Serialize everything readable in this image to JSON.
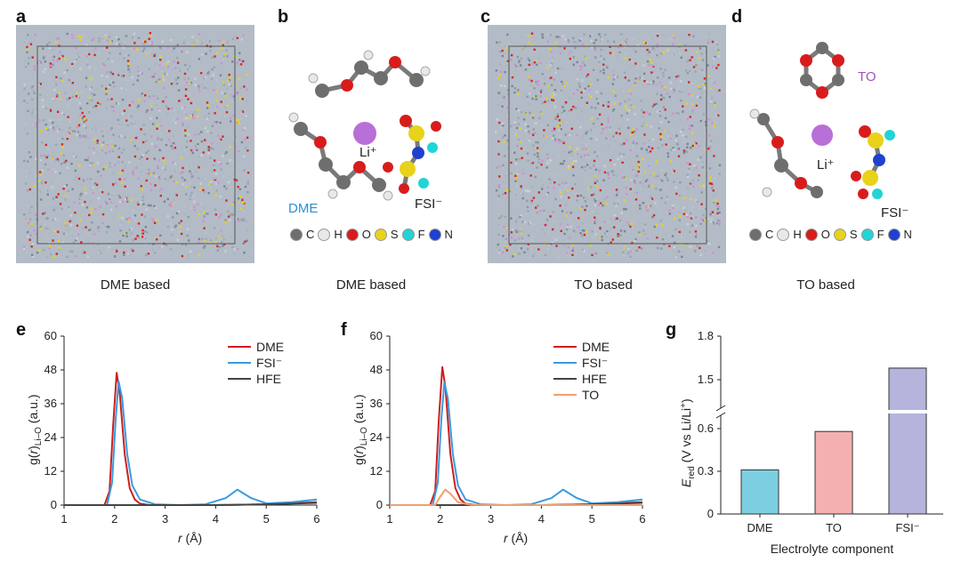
{
  "panels": {
    "a": {
      "letter": "a",
      "caption": "DME based"
    },
    "b": {
      "letter": "b",
      "caption": "DME based",
      "labels": {
        "dme": "DME",
        "li": "Li⁺",
        "fsi": "FSI⁻"
      }
    },
    "c": {
      "letter": "c",
      "caption": "TO based"
    },
    "d": {
      "letter": "d",
      "caption": "TO based",
      "labels": {
        "to": "TO",
        "li": "Li⁺",
        "fsi": "FSI⁻"
      }
    },
    "e": {
      "letter": "e"
    },
    "f": {
      "letter": "f"
    },
    "g": {
      "letter": "g"
    }
  },
  "atom_legend": [
    {
      "symbol": "C",
      "color": "#6e6e6e"
    },
    {
      "symbol": "H",
      "color": "#e8e8e8"
    },
    {
      "symbol": "O",
      "color": "#d81c1c"
    },
    {
      "symbol": "S",
      "color": "#e8d21a"
    },
    {
      "symbol": "F",
      "color": "#22d4d4"
    },
    {
      "symbol": "N",
      "color": "#2040d0"
    }
  ],
  "colors": {
    "dme": "#cc1f1f",
    "fsi": "#3a9be0",
    "hfe": "#444444",
    "to": "#f0a070",
    "bar_dme": "#7ccfe0",
    "bar_to": "#f4b0b0",
    "bar_fsi": "#b4b4dc",
    "dme_label": "#2b8fd6",
    "to_label": "#a050c0"
  },
  "chart_data": [
    {
      "type": "line",
      "panel": "e",
      "xlabel": "r (Å)",
      "ylabel": "g(r)Li–O (a.u.)",
      "xlim": [
        1,
        6
      ],
      "ylim": [
        0,
        60
      ],
      "xticks": [
        1,
        2,
        3,
        4,
        5,
        6
      ],
      "yticks": [
        0,
        12,
        24,
        36,
        48,
        60
      ],
      "legend": "top-right",
      "series": [
        {
          "name": "DME",
          "color": "#cc1f1f",
          "x": [
            1,
            1.8,
            1.9,
            1.97,
            2.04,
            2.1,
            2.2,
            2.3,
            2.4,
            2.5,
            2.7,
            3,
            4,
            5,
            6
          ],
          "y": [
            0,
            0,
            5,
            28,
            47,
            40,
            18,
            6,
            2,
            0.5,
            0,
            0,
            0,
            0.3,
            1
          ]
        },
        {
          "name": "FSI⁻",
          "color": "#3a9be0",
          "x": [
            1,
            1.85,
            1.95,
            2.02,
            2.08,
            2.15,
            2.25,
            2.35,
            2.5,
            2.8,
            3.3,
            3.8,
            4.2,
            4.43,
            4.7,
            5,
            5.5,
            6
          ],
          "y": [
            0,
            0,
            8,
            30,
            44,
            38,
            18,
            7,
            2,
            0.3,
            0,
            0.3,
            2.5,
            5.5,
            2.5,
            0.6,
            1,
            2
          ]
        },
        {
          "name": "HFE",
          "color": "#444444",
          "x": [
            1,
            2,
            3,
            4,
            5,
            6
          ],
          "y": [
            0,
            0,
            0,
            0,
            0.3,
            0.8
          ]
        }
      ]
    },
    {
      "type": "line",
      "panel": "f",
      "xlabel": "r (Å)",
      "ylabel": "g(r)Li–O (a.u.)",
      "xlim": [
        1,
        6
      ],
      "ylim": [
        0,
        60
      ],
      "xticks": [
        1,
        2,
        3,
        4,
        5,
        6
      ],
      "yticks": [
        0,
        12,
        24,
        36,
        48,
        60
      ],
      "legend": "top-right",
      "series": [
        {
          "name": "DME",
          "color": "#cc1f1f",
          "x": [
            1,
            1.8,
            1.9,
            1.97,
            2.04,
            2.1,
            2.2,
            2.3,
            2.4,
            2.5,
            2.7,
            3,
            4,
            5,
            6
          ],
          "y": [
            0,
            0,
            5,
            30,
            49,
            42,
            18,
            6,
            2,
            0.5,
            0,
            0,
            0,
            0.3,
            1
          ]
        },
        {
          "name": "FSI⁻",
          "color": "#3a9be0",
          "x": [
            1,
            1.85,
            1.95,
            2.02,
            2.08,
            2.15,
            2.25,
            2.35,
            2.5,
            2.8,
            3.3,
            3.8,
            4.2,
            4.43,
            4.7,
            5,
            5.5,
            6
          ],
          "y": [
            0,
            0,
            8,
            30,
            43.5,
            38,
            18,
            7,
            2,
            0.3,
            0,
            0.3,
            2.5,
            5.5,
            2.5,
            0.6,
            1,
            2
          ]
        },
        {
          "name": "HFE",
          "color": "#444444",
          "x": [
            1,
            2,
            3,
            4,
            5,
            6
          ],
          "y": [
            0,
            0,
            0,
            0,
            0.3,
            0.8
          ]
        },
        {
          "name": "TO",
          "color": "#f0a070",
          "x": [
            1,
            1.9,
            2.0,
            2.1,
            2.2,
            2.35,
            2.6,
            3,
            6
          ],
          "y": [
            0,
            0,
            3,
            5.5,
            4,
            1,
            0.1,
            0,
            0
          ]
        }
      ]
    },
    {
      "type": "bar",
      "panel": "g",
      "categories": [
        "DME",
        "TO",
        "FSI⁻"
      ],
      "values": [
        0.31,
        0.58,
        1.58
      ],
      "colors": [
        "#7ccfe0",
        "#f4b0b0",
        "#b4b4dc"
      ],
      "xlabel": "Electrolyte component",
      "ylabel": "Ered (V vs Li/Li⁺)",
      "yticks_lower": [
        0,
        0.3,
        0.6
      ],
      "yticks_upper": [
        1.5,
        1.8
      ],
      "axis_break": true
    }
  ],
  "axis_text": {
    "x_ticks": [
      "1",
      "2",
      "3",
      "4",
      "5",
      "6"
    ],
    "y_ticks": [
      "0",
      "12",
      "24",
      "36",
      "48",
      "60"
    ],
    "x_label_r": "r",
    "x_label_unit": " (Å)",
    "y_label_g": "g(",
    "y_label_r": "r",
    "y_label_close": ")",
    "y_label_sub": "Li–O",
    "y_label_unit": " (a.u.)",
    "g_ylabel_e": "E",
    "g_ylabel_sub": "red",
    "g_ylabel_rest": " (V vs Li/Li",
    "g_ylabel_sup": "+",
    "g_ylabel_close": ")",
    "g_yticks": [
      "0",
      "0.3",
      "0.6",
      "1.5",
      "1.8"
    ]
  }
}
